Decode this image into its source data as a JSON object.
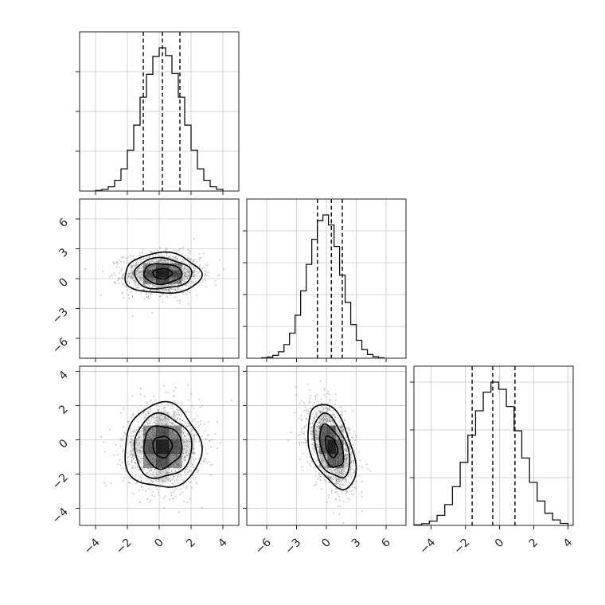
{
  "chart_data": {
    "type": "corner",
    "num_params": 3,
    "grid": true,
    "params": [
      {
        "range": [
          -5,
          5
        ],
        "ticks": [
          -4,
          -2,
          0,
          2,
          4
        ],
        "mean": 0.2,
        "sigma": 1.2,
        "quantiles": [
          -1.0,
          0.2,
          1.3
        ]
      },
      {
        "range": [
          -8,
          8
        ],
        "ticks": [
          -6,
          -3,
          0,
          3,
          6
        ],
        "mean": 0.5,
        "sigma": 1.2,
        "quantiles": [
          -0.9,
          0.5,
          1.6
        ]
      },
      {
        "range": [
          -5,
          4.3
        ],
        "ticks": [
          -4,
          -2,
          0,
          2,
          4
        ],
        "mean": -0.4,
        "sigma": 1.3,
        "quantiles": [
          -1.6,
          -0.4,
          0.9
        ]
      }
    ],
    "hist_y_ticks": [
      [
        0.25,
        0.5,
        0.75
      ],
      [
        0.2,
        0.4,
        0.6,
        0.8
      ],
      [
        0.3,
        0.6,
        0.9
      ]
    ],
    "histograms": [
      {
        "param": 0,
        "bins": 20,
        "range": [
          -4,
          4
        ],
        "counts": [
          0.004,
          0.012,
          0.03,
          0.075,
          0.155,
          0.285,
          0.46,
          0.655,
          0.815,
          0.94,
          1.0,
          0.945,
          0.82,
          0.655,
          0.46,
          0.285,
          0.155,
          0.075,
          0.03,
          0.012
        ]
      },
      {
        "param": 1,
        "bins": 22,
        "range": [
          -6.5,
          5.8
        ],
        "counts": [
          0.003,
          0.008,
          0.02,
          0.045,
          0.095,
          0.175,
          0.3,
          0.47,
          0.655,
          0.83,
          0.96,
          1.0,
          0.93,
          0.78,
          0.58,
          0.39,
          0.235,
          0.125,
          0.06,
          0.026,
          0.01,
          0.003
        ]
      },
      {
        "param": 2,
        "bins": 20,
        "range": [
          -5,
          4
        ],
        "counts": [
          0.004,
          0.012,
          0.03,
          0.07,
          0.145,
          0.27,
          0.44,
          0.63,
          0.8,
          0.93,
          1.0,
          0.95,
          0.83,
          0.66,
          0.47,
          0.3,
          0.17,
          0.085,
          0.038,
          0.014
        ]
      }
    ],
    "pairs": [
      {
        "x": 0,
        "y": 1,
        "correlation": 0.0,
        "y_scale": 0.85
      },
      {
        "x": 0,
        "y": 2,
        "correlation": 0.0,
        "y_scale": 0.95
      },
      {
        "x": 1,
        "y": 2,
        "correlation": -0.45,
        "y_scale": 0.95
      }
    ],
    "contour_levels_sigma": [
      0.5,
      1.0,
      1.5,
      2.0
    ],
    "scatter_points_per_panel": 1400,
    "colors": {
      "line": "#111111",
      "points": "#999999",
      "grid": "#c8c8c8",
      "density": "#000000"
    }
  }
}
